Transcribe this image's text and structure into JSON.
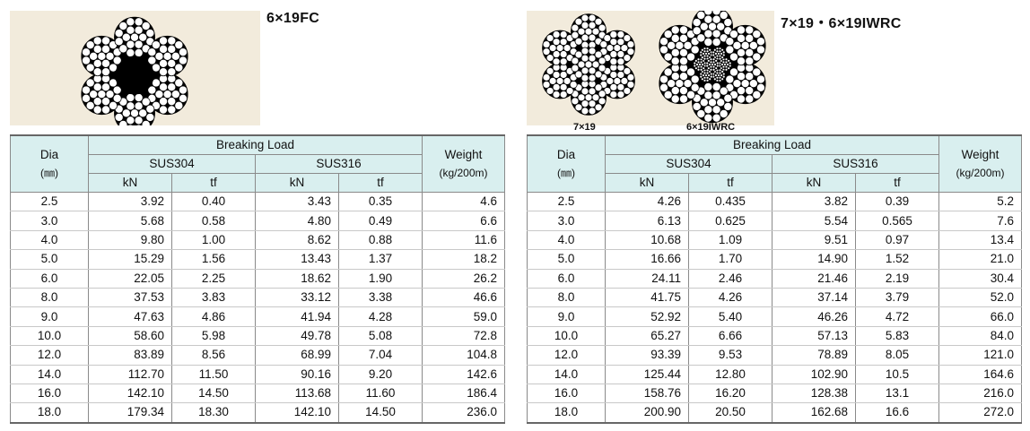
{
  "left": {
    "title": "6×19FC",
    "headers": {
      "dia": "Dia",
      "dia_unit": "(㎜)",
      "breaking_load": "Breaking Load",
      "sus304": "SUS304",
      "sus316": "SUS316",
      "kn": "kN",
      "tf": "tf",
      "weight": "Weight",
      "weight_unit": "(kg/200m)"
    },
    "rows": [
      [
        "2.5",
        "3.92",
        "0.40",
        "3.43",
        "0.35",
        "4.6"
      ],
      [
        "3.0",
        "5.68",
        "0.58",
        "4.80",
        "0.49",
        "6.6"
      ],
      [
        "4.0",
        "9.80",
        "1.00",
        "8.62",
        "0.88",
        "11.6"
      ],
      [
        "5.0",
        "15.29",
        "1.56",
        "13.43",
        "1.37",
        "18.2"
      ],
      [
        "6.0",
        "22.05",
        "2.25",
        "18.62",
        "1.90",
        "26.2"
      ],
      [
        "8.0",
        "37.53",
        "3.83",
        "33.12",
        "3.38",
        "46.6"
      ],
      [
        "9.0",
        "47.63",
        "4.86",
        "41.94",
        "4.28",
        "59.0"
      ],
      [
        "10.0",
        "58.60",
        "5.98",
        "49.78",
        "5.08",
        "72.8"
      ],
      [
        "12.0",
        "83.89",
        "8.56",
        "68.99",
        "7.04",
        "104.8"
      ],
      [
        "14.0",
        "112.70",
        "11.50",
        "90.16",
        "9.20",
        "142.6"
      ],
      [
        "16.0",
        "142.10",
        "14.50",
        "113.68",
        "11.60",
        "186.4"
      ],
      [
        "18.0",
        "179.34",
        "18.30",
        "142.10",
        "14.50",
        "236.0"
      ]
    ]
  },
  "right": {
    "title": "7×19・6×19IWRC",
    "captions": [
      "7×19",
      "6×19IWRC"
    ],
    "headers": {
      "dia": "Dia",
      "dia_unit": "(㎜)",
      "breaking_load": "Breaking Load",
      "sus304": "SUS304",
      "sus316": "SUS316",
      "kn": "kN",
      "tf": "tf",
      "weight": "Weight",
      "weight_unit": "(kg/200m)"
    },
    "rows": [
      [
        "2.5",
        "4.26",
        "0.435",
        "3.82",
        "0.39",
        "5.2"
      ],
      [
        "3.0",
        "6.13",
        "0.625",
        "5.54",
        "0.565",
        "7.6"
      ],
      [
        "4.0",
        "10.68",
        "1.09",
        "9.51",
        "0.97",
        "13.4"
      ],
      [
        "5.0",
        "16.66",
        "1.70",
        "14.90",
        "1.52",
        "21.0"
      ],
      [
        "6.0",
        "24.11",
        "2.46",
        "21.46",
        "2.19",
        "30.4"
      ],
      [
        "8.0",
        "41.75",
        "4.26",
        "37.14",
        "3.79",
        "52.0"
      ],
      [
        "9.0",
        "52.92",
        "5.40",
        "46.26",
        "4.72",
        "66.0"
      ],
      [
        "10.0",
        "65.27",
        "6.66",
        "57.13",
        "5.83",
        "84.0"
      ],
      [
        "12.0",
        "93.39",
        "9.53",
        "78.89",
        "8.05",
        "121.0"
      ],
      [
        "14.0",
        "125.44",
        "12.80",
        "102.90",
        "10.5",
        "164.6"
      ],
      [
        "16.0",
        "158.76",
        "16.20",
        "128.38",
        "13.1",
        "216.0"
      ],
      [
        "18.0",
        "200.90",
        "20.50",
        "162.68",
        "16.6",
        "272.0"
      ]
    ]
  }
}
